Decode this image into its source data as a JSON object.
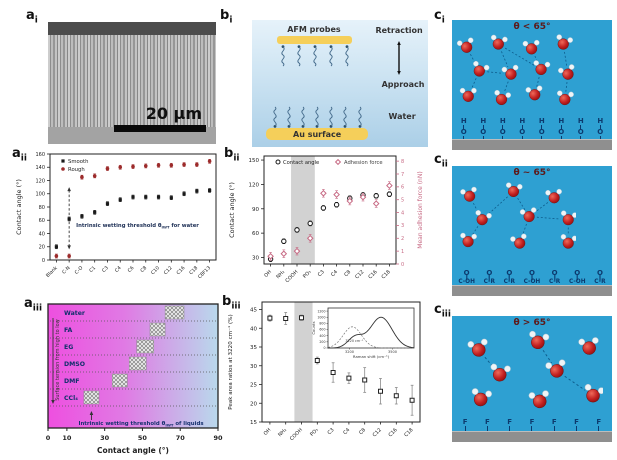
{
  "panels": {
    "a_i": {
      "label": "a",
      "sub": "i",
      "scalebar": "20 μm"
    },
    "a_ii": {
      "label": "a",
      "sub": "ii"
    },
    "a_iii": {
      "label": "a",
      "sub": "iii"
    },
    "b_i": {
      "label": "b",
      "sub": "i",
      "afm_label": "AFM probes",
      "retraction": "Retraction",
      "approach": "Approach",
      "water": "Water",
      "au_surface": "Au surface"
    },
    "b_ii": {
      "label": "b",
      "sub": "ii"
    },
    "b_iii": {
      "label": "b",
      "sub": "iii"
    },
    "c_i": {
      "label": "c",
      "sub": "i",
      "theta": "θ < 65°",
      "surface_unit_top": "H",
      "surface_unit_bottom": "O",
      "surface_count": 8
    },
    "c_ii": {
      "label": "c",
      "sub": "ii",
      "theta": "θ ~ 65°",
      "top_atom": "O",
      "double_bond": "‖",
      "groups": [
        "C-OH",
        "C-R",
        "C-R",
        "C-OH",
        "C-R",
        "C-OH",
        "C-R"
      ]
    },
    "c_iii": {
      "label": "c",
      "sub": "iii",
      "theta": "θ > 65°",
      "surface_unit": "F",
      "surface_count": 7
    }
  },
  "chart_data": {
    "a_ii": {
      "type": "scatter",
      "categories": [
        "Blank",
        "C-N",
        "C-O",
        "C1",
        "C3",
        "C4",
        "C6",
        "C8",
        "C10",
        "C12",
        "C16",
        "C18",
        "C8F13"
      ],
      "series": [
        {
          "name": "Smooth",
          "color": "#1a1a1a",
          "marker": "square",
          "values": [
            20,
            62,
            66,
            72,
            85,
            91,
            95,
            95,
            95,
            94,
            100,
            104,
            105
          ],
          "error": 3
        },
        {
          "name": "Rough",
          "color": "#9c2b2b",
          "marker": "circle",
          "values": [
            6,
            6,
            125,
            127,
            138,
            140,
            141,
            142,
            143,
            143,
            144,
            144,
            149
          ],
          "error": 3
        }
      ],
      "ylabel": "Contact angle (°)",
      "ylim": [
        0,
        160
      ],
      "yticks": [
        0,
        20,
        40,
        60,
        80,
        100,
        120,
        140,
        160
      ],
      "annotation_parts": [
        "Intrinsic wetting threshold θ",
        "IWT",
        " for water"
      ],
      "annotation_category_index": 1,
      "annotation_span": [
        16,
        110
      ],
      "legend_position": "top-left",
      "grid": false
    },
    "a_iii": {
      "type": "band",
      "liquids": [
        "Water",
        "FA",
        "EG",
        "DMSO",
        "DMF",
        "CCl₄"
      ],
      "ranges": [
        [
          62,
          72
        ],
        [
          54,
          62
        ],
        [
          47,
          56
        ],
        [
          43,
          52
        ],
        [
          34,
          42
        ],
        [
          19,
          27
        ]
      ],
      "xlabel": "Contact angle (°)",
      "xlim": [
        0,
        90
      ],
      "xticks": [
        0,
        10,
        30,
        50,
        70,
        90
      ],
      "left_label": "Surface tension from high to low",
      "annotation_parts": [
        "Intrinsic wetting threshold θ",
        "IWT",
        " of liquids"
      ],
      "annotation_x": 23,
      "gradient": [
        "#ee4fe0",
        "#b9d9ec"
      ]
    },
    "b_ii": {
      "type": "scatter-dual",
      "categories": [
        "OH",
        "NH₂",
        "COOH",
        "PO₃",
        "C3",
        "C4",
        "C8",
        "C12",
        "C16",
        "C18"
      ],
      "series": [
        {
          "name": "Contact angle",
          "axis": "left",
          "color": "#1a1a1a",
          "marker": "open-circle",
          "values": [
            28,
            50,
            64,
            72,
            91,
            95,
            103,
            107,
            106,
            108
          ],
          "error": 3
        },
        {
          "name": "Adhesion force",
          "axis": "right",
          "color": "#c76a84",
          "marker": "open-diamond",
          "values": [
            0.6,
            0.8,
            1.0,
            2.0,
            5.5,
            5.4,
            4.9,
            5.2,
            4.7,
            6.1
          ],
          "error": 0.3
        }
      ],
      "ylabel_left": "Contact angle (°)",
      "ylim_left": [
        22,
        155
      ],
      "yticks_left": [
        30,
        60,
        90,
        120,
        150
      ],
      "ylabel_right": "Mean adhesion force (nN)",
      "ylim_right": [
        0,
        8.4
      ],
      "yticks_right": [
        0,
        1,
        2,
        3,
        4,
        5,
        6,
        7,
        8
      ],
      "highlight_band_indices": [
        2,
        3
      ],
      "band_color": "#d2d2d2",
      "grid": false
    },
    "b_iii": {
      "type": "scatter-error",
      "categories": [
        "OH",
        "NH₂",
        "COOH",
        "PO₃",
        "C3",
        "C4",
        "C8",
        "C12",
        "C16",
        "C18"
      ],
      "values": [
        42.7,
        42.6,
        42.8,
        31.4,
        28.2,
        26.7,
        26.2,
        23.2,
        22.0,
        20.8
      ],
      "errors": [
        0.8,
        1.6,
        0.7,
        0.9,
        2.6,
        1.4,
        3.3,
        3.4,
        2.2,
        4.0
      ],
      "ylabel": "Peak area ratios at 3220 cm⁻¹ (%)",
      "ylim": [
        15,
        47
      ],
      "yticks": [
        15,
        20,
        25,
        30,
        35,
        40,
        45
      ],
      "highlight_band_indices": [
        2,
        3
      ],
      "band_color": "#d2d2d2",
      "inset": {
        "type": "line",
        "ylabel": "Counts",
        "yticks": [
          0,
          200,
          400,
          600,
          800,
          1000,
          1200
        ],
        "ylim": [
          0,
          1300
        ],
        "xlabel": "Raman shift (cm⁻¹)",
        "xticks": [
          3200,
          3500
        ],
        "xlim": [
          3050,
          3650
        ],
        "annotation": "3220 cm⁻¹",
        "main_peak": {
          "center": 3420,
          "sigma": 108,
          "amp": 1000,
          "shoulder_center": 3240,
          "shoulder_sigma": 72,
          "shoulder_amp": 350
        },
        "fit_peak": {
          "center": 3220,
          "sigma": 90,
          "amp": 690
        }
      }
    }
  },
  "colors": {
    "water_blue": "#2ea0d2",
    "substrate_gray": "#8f8f8f",
    "gold": "#f5cf5a",
    "rough": "#9c2b2b",
    "smooth": "#1a1a1a",
    "adhesion_pink": "#c76a84",
    "band_gray": "#d2d2d2",
    "group_navy": "#0c3a6e",
    "theta_text": "#5c1a1a"
  }
}
